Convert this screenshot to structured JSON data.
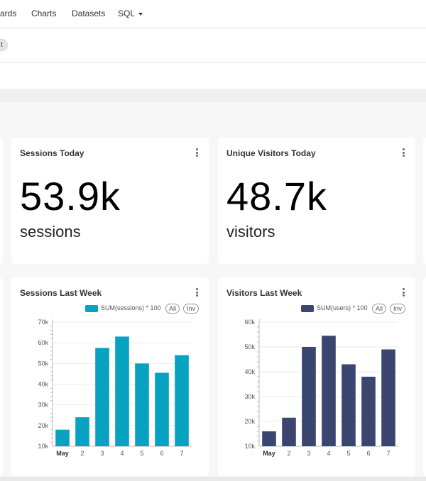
{
  "nav": {
    "items": [
      {
        "label": "ards"
      },
      {
        "label": "Charts"
      },
      {
        "label": "Datasets"
      },
      {
        "label": "SQL"
      }
    ]
  },
  "filter": {
    "pill_label": "t"
  },
  "cards": {
    "sessions_today": {
      "title": "Sessions Today",
      "value": "53.9k",
      "subheader": "sessions"
    },
    "visitors_today": {
      "title": "Unique Visitors Today",
      "value": "48.7k",
      "subheader": "visitors"
    },
    "sessions_week": {
      "title": "Sessions Last Week",
      "legend_label": "SUM(sessions) * 100",
      "all_label": "All",
      "inv_label": "Inv",
      "color": "#08a2c1"
    },
    "visitors_week": {
      "title": "Visitors Last Week",
      "legend_label": "SUM(users) * 100",
      "all_label": "All",
      "inv_label": "Inv",
      "color": "#3a4570"
    }
  },
  "chart_data": [
    {
      "type": "bar",
      "title": "Sessions Last Week",
      "categories": [
        "May",
        "2",
        "3",
        "4",
        "5",
        "6",
        "7"
      ],
      "series": [
        {
          "name": "SUM(sessions) * 100",
          "values": [
            18000,
            24000,
            57500,
            63000,
            50000,
            45500,
            54000
          ]
        }
      ],
      "yticks": [
        "10k",
        "20k",
        "30k",
        "40k",
        "50k",
        "60k",
        "70k"
      ],
      "ylim": [
        10000,
        70000
      ],
      "color": "#08a2c1"
    },
    {
      "type": "bar",
      "title": "Visitors Last Week",
      "categories": [
        "May",
        "2",
        "3",
        "4",
        "5",
        "6",
        "7"
      ],
      "series": [
        {
          "name": "SUM(users) * 100",
          "values": [
            16000,
            21500,
            50000,
            54500,
            43000,
            38000,
            49000
          ]
        }
      ],
      "yticks": [
        "10k",
        "20k",
        "30k",
        "40k",
        "50k",
        "60k"
      ],
      "ylim": [
        10000,
        60000
      ],
      "color": "#3a4570"
    }
  ]
}
